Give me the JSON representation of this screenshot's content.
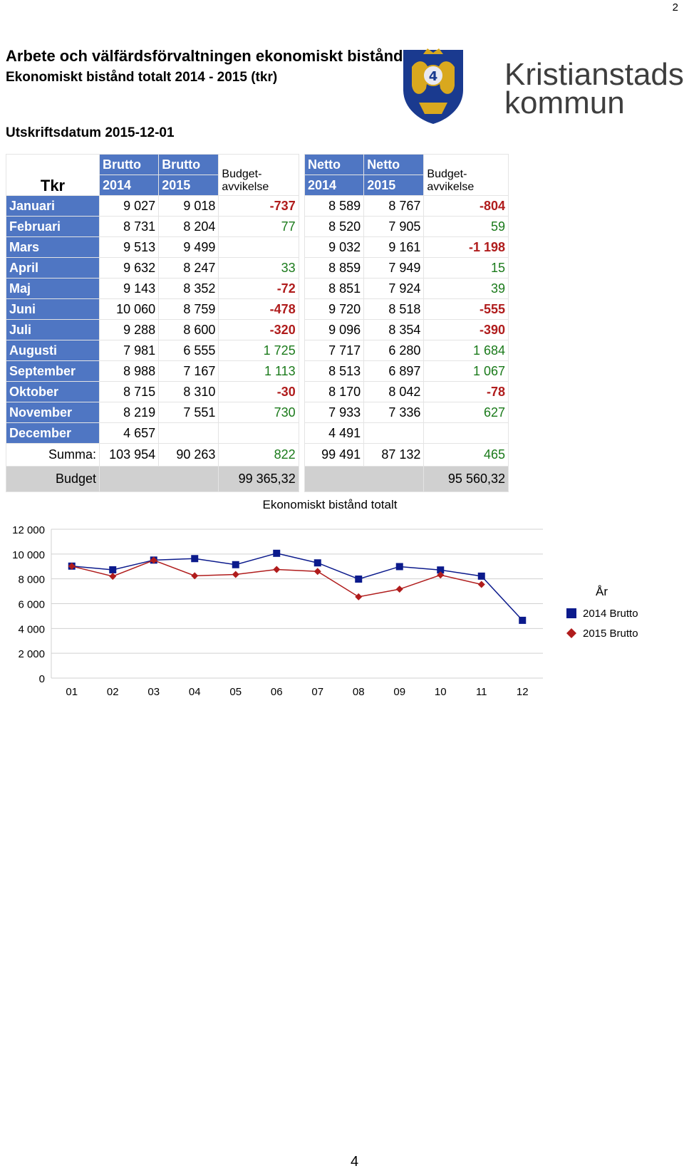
{
  "page_number": "2",
  "bottom_number": "4",
  "title": "Arbete och välfärdsförvaltningen ekonomiskt bistånd 1",
  "subtitle": "Ekonomiskt bistånd totalt 2014 - 2015 (tkr)",
  "print_date": "Utskriftsdatum 2015-12-01",
  "logo": {
    "line1": "Kristianstads",
    "line2": "kommun",
    "colors": {
      "shield": "#1a3a8f",
      "gold": "#d9a81e",
      "text": "#3e3e3e"
    }
  },
  "table": {
    "tkr_label": "Tkr",
    "header_top": [
      "Brutto",
      "Brutto",
      "Netto",
      "Netto"
    ],
    "header_years": [
      "2014",
      "2015",
      "2014",
      "2015"
    ],
    "budget_dev_label": "Budget-\navvikelse",
    "rows": [
      {
        "month": "Januari",
        "b14": "9 027",
        "b15": "9 018",
        "bd": "-737",
        "n14": "8 589",
        "n15": "8 767",
        "nd": "-804"
      },
      {
        "month": "Februari",
        "b14": "8 731",
        "b15": "8 204",
        "bd": "77",
        "n14": "8 520",
        "n15": "7 905",
        "nd": "59"
      },
      {
        "month": "Mars",
        "b14": "9 513",
        "b15": "9 499",
        "bd": "",
        "n14": "9 032",
        "n15": "9 161",
        "nd": "-1 198"
      },
      {
        "month": "April",
        "b14": "9 632",
        "b15": "8 247",
        "bd": "33",
        "n14": "8 859",
        "n15": "7 949",
        "nd": "15"
      },
      {
        "month": "Maj",
        "b14": "9 143",
        "b15": "8 352",
        "bd": "-72",
        "n14": "8 851",
        "n15": "7 924",
        "nd": "39"
      },
      {
        "month": "Juni",
        "b14": "10 060",
        "b15": "8 759",
        "bd": "-478",
        "n14": "9 720",
        "n15": "8 518",
        "nd": "-555"
      },
      {
        "month": "Juli",
        "b14": "9 288",
        "b15": "8 600",
        "bd": "-320",
        "n14": "9 096",
        "n15": "8 354",
        "nd": "-390"
      },
      {
        "month": "Augusti",
        "b14": "7 981",
        "b15": "6 555",
        "bd": "1 725",
        "n14": "7 717",
        "n15": "6 280",
        "nd": "1 684"
      },
      {
        "month": "September",
        "b14": "8 988",
        "b15": "7 167",
        "bd": "1 113",
        "n14": "8 513",
        "n15": "6 897",
        "nd": "1 067"
      },
      {
        "month": "Oktober",
        "b14": "8 715",
        "b15": "8 310",
        "bd": "-30",
        "n14": "8 170",
        "n15": "8 042",
        "nd": "-78"
      },
      {
        "month": "November",
        "b14": "8 219",
        "b15": "7 551",
        "bd": "730",
        "n14": "7 933",
        "n15": "7 336",
        "nd": "627"
      },
      {
        "month": "December",
        "b14": "4 657",
        "b15": "",
        "bd": "",
        "n14": "4 491",
        "n15": "",
        "nd": ""
      }
    ],
    "sum": {
      "label": "Summa:",
      "b14": "103 954",
      "b15": "90 263",
      "bd": "822",
      "n14": "99 491",
      "n15": "87 132",
      "nd": "465"
    },
    "budget": {
      "label": "Budget",
      "brutto": "99 365,32",
      "netto": "95 560,32"
    },
    "colors": {
      "header_bg": "#4f76c3",
      "negative": "#b01c1c",
      "positive": "#1a7a1a",
      "budget_bg": "#d0d0d0"
    }
  },
  "chart_data": {
    "type": "line",
    "title": "Ekonomiskt bistånd totalt",
    "categories": [
      "01",
      "02",
      "03",
      "04",
      "05",
      "06",
      "07",
      "08",
      "09",
      "10",
      "11",
      "12"
    ],
    "ylim": [
      0,
      12000
    ],
    "yticks": [
      0,
      2000,
      4000,
      6000,
      8000,
      10000,
      12000
    ],
    "ytick_labels": [
      "0",
      "2 000",
      "4 000",
      "6 000",
      "8 000",
      "10 000",
      "12 000"
    ],
    "grid": true,
    "legend_title": "År",
    "legend_placement": "right",
    "series": [
      {
        "name": "2014 Brutto",
        "color": "#0b1a8c",
        "marker": "square",
        "values": [
          9027,
          8731,
          9513,
          9632,
          9143,
          10060,
          9288,
          7981,
          8988,
          8715,
          8219,
          4657
        ]
      },
      {
        "name": "2015 Brutto",
        "color": "#b01c1c",
        "marker": "diamond",
        "values": [
          9018,
          8204,
          9499,
          8247,
          8352,
          8759,
          8600,
          6555,
          7167,
          8310,
          7551,
          null
        ]
      }
    ]
  }
}
